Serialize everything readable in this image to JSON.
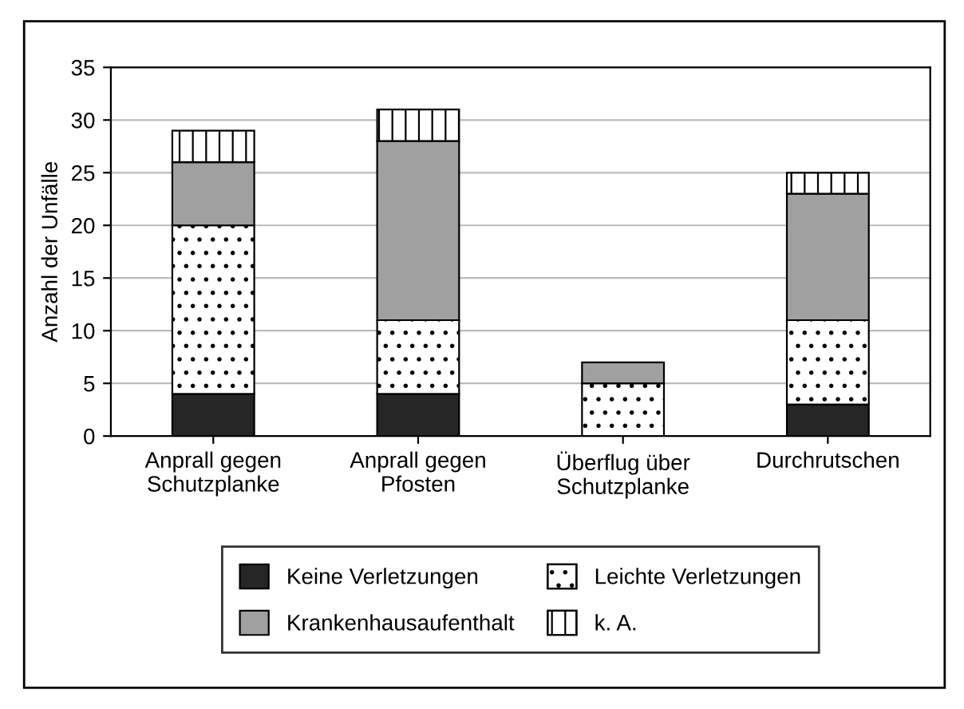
{
  "chart_data": {
    "type": "bar",
    "stacked": true,
    "ylabel": "Anzahl der Unfälle",
    "categories": [
      "Anprall gegen\nSchutzplanke",
      "Anprall gegen\nPfosten",
      "Überflug über\nSchutzplanke",
      "Durchrutschen"
    ],
    "series": [
      {
        "name": "Keine Verletzungen",
        "color": "#262626",
        "values": [
          4,
          4,
          0,
          3
        ]
      },
      {
        "name": "Leichte Verletzungen",
        "color": "#ffffff",
        "values": [
          16,
          7,
          5,
          8
        ]
      },
      {
        "name": "Krankenhausaufenthalt",
        "color": "#a0a0a0",
        "values": [
          6,
          17,
          2,
          12
        ]
      },
      {
        "name": "k. A.",
        "color": "#ffffff",
        "values": [
          3,
          3,
          0,
          2
        ]
      }
    ],
    "ylim": [
      0,
      35
    ],
    "yticks": [
      0,
      5,
      10,
      15,
      20,
      25,
      30,
      35
    ],
    "grid": "y",
    "legend": "bottom"
  }
}
